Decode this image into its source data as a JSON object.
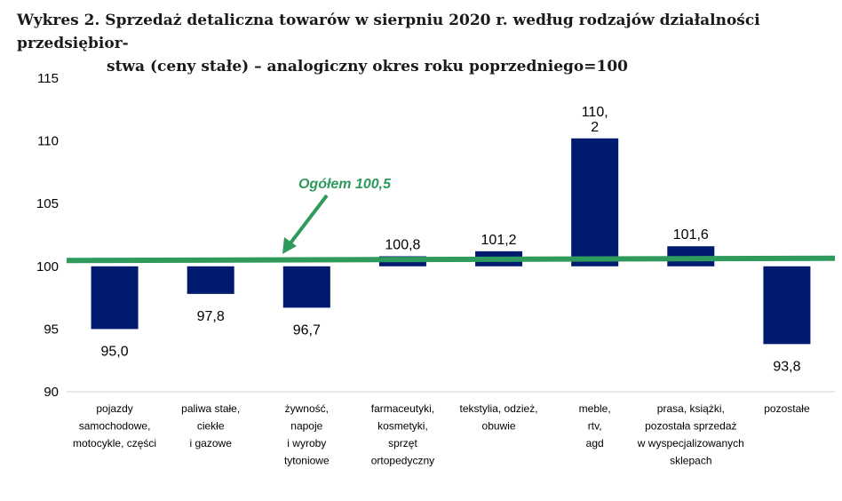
{
  "title_line1": "Wykres 2. Sprzedaż detaliczna towarów w sierpniu 2020 r. według rodzajów działalności przedsiębior-",
  "title_line2": "stwa (ceny stałe) – analogiczny okres roku poprzedniego=100",
  "chart_data": {
    "type": "bar",
    "baseline": 100,
    "ylim": [
      90,
      115
    ],
    "yticks": [
      90,
      95,
      100,
      105,
      110,
      115
    ],
    "grid": false,
    "bar_color": "#001a70",
    "line_color": "#2e9a5c",
    "categories": [
      [
        "pojazdy",
        "samochodowe,",
        "motocykle, części"
      ],
      [
        "paliwa stałe,",
        "ciekłe",
        "i gazowe"
      ],
      [
        "żywność,",
        "napoje",
        "i wyroby",
        "tytoniowe"
      ],
      [
        "farmaceutyki,",
        "kosmetyki,",
        "sprzęt",
        "ortopedyczny"
      ],
      [
        "tekstylia, odzież,",
        "obuwie"
      ],
      [
        "meble,",
        "rtv,",
        "agd"
      ],
      [
        "prasa, książki,",
        "pozostała sprzedaż",
        "w wyspecjalizowanych",
        "sklepach"
      ],
      [
        "pozostałe"
      ]
    ],
    "values": [
      95.0,
      97.8,
      96.7,
      100.8,
      101.2,
      110.2,
      101.6,
      93.8
    ],
    "value_labels": [
      [
        "95,0"
      ],
      [
        "97,8"
      ],
      [
        "96,7"
      ],
      [
        "100,8"
      ],
      [
        "101,2"
      ],
      [
        "110,",
        "2"
      ],
      [
        "101,6"
      ],
      [
        "93,8"
      ]
    ],
    "reference_line": {
      "value": 100.5,
      "label": "Ogółem 100,5"
    }
  }
}
